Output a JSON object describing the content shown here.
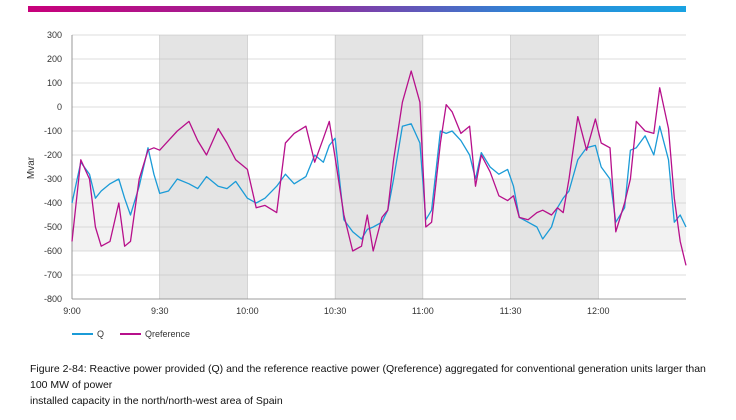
{
  "header": {
    "accent_colors": [
      "#c8007a",
      "#8e2fa0",
      "#2d86d6",
      "#1aa3e2"
    ]
  },
  "chart_data": {
    "type": "line",
    "title": "",
    "xlabel": "",
    "ylabel": "Mvar",
    "ylim": [
      -800,
      300
    ],
    "yticks": [
      300,
      200,
      100,
      0,
      -100,
      -200,
      -300,
      -400,
      -500,
      -600,
      -700,
      -800
    ],
    "xlim_minutes": [
      0,
      210
    ],
    "xticks": [
      {
        "label": "9:00",
        "minute": 0
      },
      {
        "label": "9:30",
        "minute": 30
      },
      {
        "label": "10:00",
        "minute": 60
      },
      {
        "label": "10:30",
        "minute": 90
      },
      {
        "label": "11:00",
        "minute": 120
      },
      {
        "label": "11:30",
        "minute": 150
      },
      {
        "label": "12:00",
        "minute": 180
      }
    ],
    "shaded_y_band": [
      -600,
      -300
    ],
    "shaded_x_bands": [
      [
        30,
        60
      ],
      [
        90,
        120
      ],
      [
        150,
        180
      ]
    ],
    "grid": true,
    "x": [
      0,
      3,
      6,
      8,
      10,
      13,
      16,
      18,
      20,
      23,
      26,
      28,
      30,
      33,
      36,
      40,
      43,
      46,
      50,
      53,
      56,
      60,
      63,
      66,
      70,
      73,
      76,
      80,
      83,
      86,
      88,
      90,
      93,
      96,
      99,
      101,
      103,
      106,
      108,
      110,
      113,
      116,
      119,
      121,
      123,
      126,
      128,
      130,
      133,
      136,
      138,
      140,
      143,
      146,
      149,
      151,
      153,
      156,
      159,
      161,
      164,
      166,
      168,
      170,
      173,
      176,
      179,
      181,
      184,
      186,
      189,
      191,
      193,
      196,
      199,
      201,
      204,
      206,
      208,
      210
    ],
    "series": [
      {
        "name": "Q",
        "color": "#1b9bd7",
        "values": [
          -400,
          -230,
          -280,
          -380,
          -350,
          -320,
          -300,
          -380,
          -450,
          -330,
          -170,
          -280,
          -360,
          -350,
          -300,
          -320,
          -340,
          -290,
          -330,
          -340,
          -310,
          -380,
          -400,
          -380,
          -330,
          -280,
          -320,
          -290,
          -200,
          -230,
          -160,
          -130,
          -470,
          -520,
          -550,
          -510,
          -500,
          -480,
          -430,
          -300,
          -80,
          -70,
          -150,
          -470,
          -430,
          -100,
          -110,
          -100,
          -140,
          -200,
          -300,
          -190,
          -250,
          -280,
          -260,
          -330,
          -460,
          -480,
          -500,
          -550,
          -500,
          -420,
          -380,
          -350,
          -220,
          -170,
          -160,
          -250,
          -300,
          -480,
          -420,
          -180,
          -170,
          -120,
          -200,
          -80,
          -220,
          -480,
          -450,
          -500
        ]
      },
      {
        "name": "Qreference",
        "color": "#b7108b",
        "values": [
          -560,
          -220,
          -300,
          -500,
          -580,
          -560,
          -400,
          -580,
          -560,
          -300,
          -180,
          -170,
          -180,
          -140,
          -100,
          -60,
          -140,
          -200,
          -90,
          -150,
          -220,
          -260,
          -420,
          -410,
          -440,
          -150,
          -110,
          -80,
          -230,
          -130,
          -60,
          -210,
          -450,
          -600,
          -580,
          -450,
          -600,
          -460,
          -430,
          -220,
          20,
          150,
          20,
          -500,
          -480,
          -150,
          10,
          -20,
          -110,
          -80,
          -330,
          -200,
          -270,
          -370,
          -390,
          -370,
          -460,
          -470,
          -440,
          -430,
          -450,
          -420,
          -440,
          -300,
          -40,
          -180,
          -50,
          -150,
          -170,
          -520,
          -400,
          -300,
          -60,
          -100,
          -110,
          80,
          -90,
          -380,
          -560,
          -660
        ]
      }
    ]
  },
  "legend": {
    "q_label": "Q",
    "qref_label": "Qreference"
  },
  "caption": {
    "line1": "Figure 2-84: Reactive power provided (Q) and the reference reactive power (Qreference) aggregated for conventional generation units larger than 100 MW of power",
    "line2": "installed capacity in the north/north-west area of Spain"
  }
}
